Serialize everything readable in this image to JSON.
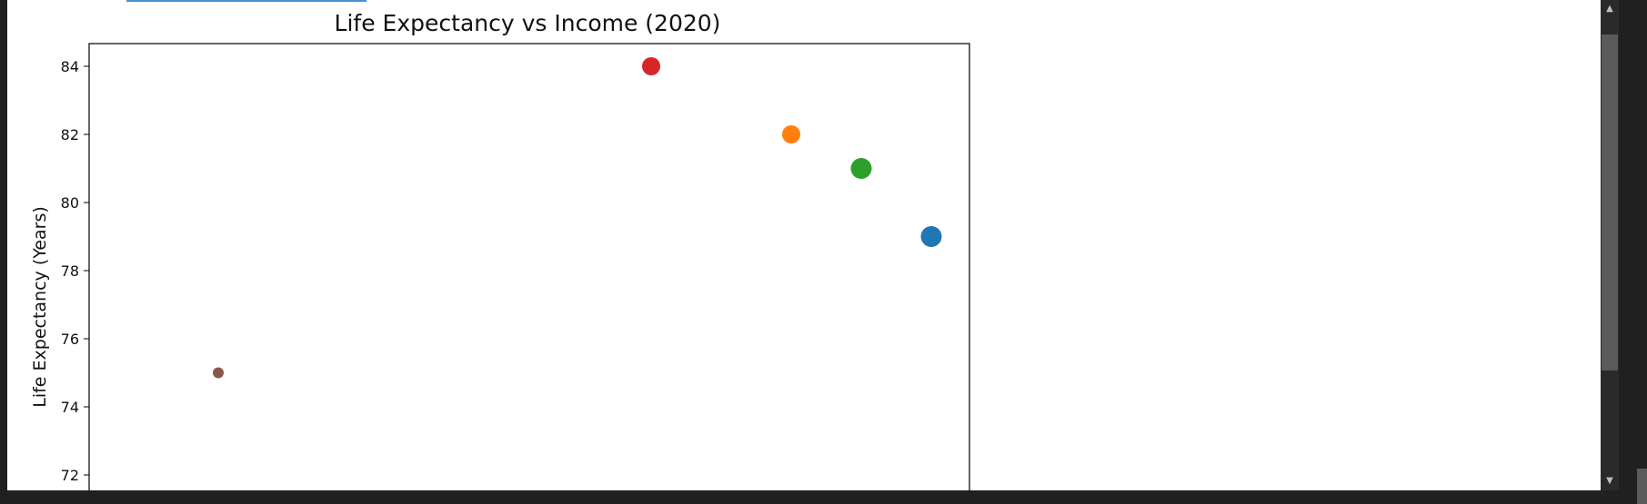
{
  "chart_data": {
    "type": "scatter",
    "title": "Life Expectancy vs Income (2020)",
    "xlabel": "",
    "ylabel": "Life Expectancy (Years)",
    "y_ticks": [
      "72",
      "74",
      "76",
      "78",
      "80",
      "82",
      "84"
    ],
    "points": [
      {
        "y": 75,
        "color": "#8c564b",
        "size": "small"
      },
      {
        "y": 84,
        "color": "#d62728",
        "size": "medium"
      },
      {
        "y": 82,
        "color": "#ff7f0e",
        "size": "medium"
      },
      {
        "y": 81,
        "color": "#2ca02c",
        "size": "large"
      },
      {
        "y": 79,
        "color": "#1f77b4",
        "size": "large"
      }
    ],
    "grid": false
  },
  "icons": {
    "scroll_up": "▲",
    "scroll_down": "▼"
  }
}
